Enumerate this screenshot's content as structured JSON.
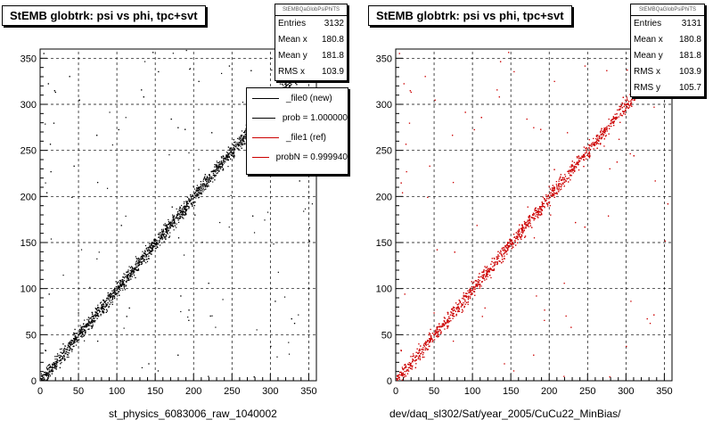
{
  "chart_data": [
    {
      "type": "scatter",
      "title": "StEMB globtrk: psi vs phi, tpc+svt",
      "xlabel": "st_physics_6083006_raw_1040002",
      "ylabel": "",
      "xlim": [
        0,
        360
      ],
      "ylim": [
        0,
        360
      ],
      "xticks": [
        0,
        50,
        100,
        150,
        200,
        250,
        300,
        350
      ],
      "yticks": [
        0,
        50,
        100,
        150,
        200,
        250,
        300,
        350
      ],
      "grid": true,
      "marker_color": "#000000",
      "stats": {
        "header": "StEMBQaGlobPsiPhiTS",
        "rows": [
          {
            "label": "Entries",
            "value": "3132"
          },
          {
            "label": "Mean x",
            "value": "180.8"
          },
          {
            "label": "Mean y",
            "value": "181.8"
          },
          {
            "label": "RMS x",
            "value": "103.9"
          }
        ]
      },
      "legend": [
        {
          "label": "_file0 (new)",
          "color": "#000000"
        },
        {
          "label": "prob = 1.000000",
          "color": "#000000"
        },
        {
          "label": "_file1 (ref)",
          "color": "#cc0000"
        },
        {
          "label": "probN = 0.999940",
          "color": "#cc0000"
        }
      ],
      "legend_position": "top-right",
      "series": [
        {
          "trend": {
            "slope": 1.0,
            "intercept": 0,
            "x_range": [
              0,
              360
            ]
          },
          "n_points": 3132
        }
      ]
    },
    {
      "type": "scatter",
      "title": "StEMB globtrk: psi vs phi, tpc+svt",
      "xlabel": "dev/daq_sl302/Sat/year_2005/CuCu22_MinBias/",
      "ylabel": "",
      "xlim": [
        0,
        360
      ],
      "ylim": [
        0,
        360
      ],
      "xticks": [
        0,
        50,
        100,
        150,
        200,
        250,
        300,
        350
      ],
      "yticks": [
        0,
        50,
        100,
        150,
        200,
        250,
        300,
        350
      ],
      "grid": true,
      "marker_color": "#cc0000",
      "stats": {
        "header": "StEMBQaGlobPsiPhiTS",
        "rows": [
          {
            "label": "Entries",
            "value": "3131"
          },
          {
            "label": "Mean x",
            "value": "180.8"
          },
          {
            "label": "Mean y",
            "value": "181.8"
          },
          {
            "label": "RMS x",
            "value": "103.9"
          },
          {
            "label": "RMS y",
            "value": "105.7"
          }
        ]
      },
      "series": [
        {
          "trend": {
            "slope": 1.0,
            "intercept": 0,
            "x_range": [
              0,
              360
            ]
          },
          "n_points": 3131
        }
      ]
    }
  ]
}
